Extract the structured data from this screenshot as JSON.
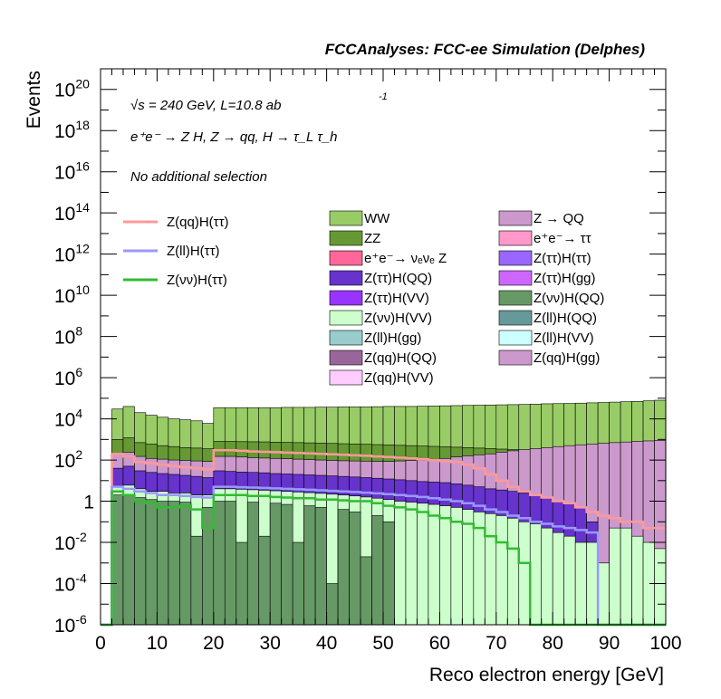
{
  "chart_data": {
    "type": "histogram",
    "log_y": true,
    "title": "FCCAnalyses: FCC-ee Simulation (Delphes)",
    "xlabel": "Reco electron energy [GeV]",
    "ylabel": "Events",
    "xlim": [
      0,
      100
    ],
    "ylim": [
      1e-06,
      1e+21
    ],
    "annotations": {
      "energy": "√s = 240 GeV, L=10.8 ab",
      "energy_sup": "-1",
      "process": "e⁺e⁻ → Z H, Z → qq, H → τ_L τ_h",
      "selection": "No additional selection"
    },
    "x_ticks": [
      "0",
      "10",
      "20",
      "30",
      "40",
      "50",
      "60",
      "70",
      "80",
      "90",
      "100"
    ],
    "y_ticks": [
      {
        "base": "10",
        "exp": "-6"
      },
      {
        "base": "10",
        "exp": "-4"
      },
      {
        "base": "10",
        "exp": "-2"
      },
      {
        "base": "1",
        "exp": ""
      },
      {
        "base": "10",
        "exp": "2"
      },
      {
        "base": "10",
        "exp": "4"
      },
      {
        "base": "10",
        "exp": "6"
      },
      {
        "base": "10",
        "exp": "8"
      },
      {
        "base": "10",
        "exp": "10"
      },
      {
        "base": "10",
        "exp": "12"
      },
      {
        "base": "10",
        "exp": "14"
      },
      {
        "base": "10",
        "exp": "16"
      },
      {
        "base": "10",
        "exp": "18"
      },
      {
        "base": "10",
        "exp": "20"
      }
    ],
    "signal_legend": [
      {
        "name": "Z(qq)H(ττ)",
        "color": "#ff9999"
      },
      {
        "name": "Z(ll)H(ττ)",
        "color": "#9999ff"
      },
      {
        "name": "Z(νν)H(ττ)",
        "color": "#33bb33"
      }
    ],
    "background_legend": [
      {
        "name": "WW",
        "color": "#99cc66"
      },
      {
        "name": "Z → QQ",
        "color": "#cc99cc"
      },
      {
        "name": "ZZ",
        "color": "#669933"
      },
      {
        "name": "e⁺e⁻→ ττ",
        "color": "#ff99cc"
      },
      {
        "name": "e⁺e⁻→ νₑνₑ Z",
        "color": "#ff6699"
      },
      {
        "name": "Z(ττ)H(ττ)",
        "color": "#9966ff"
      },
      {
        "name": "Z(ττ)H(QQ)",
        "color": "#6633cc"
      },
      {
        "name": "Z(ττ)H(gg)",
        "color": "#cc66ff"
      },
      {
        "name": "Z(ττ)H(VV)",
        "color": "#9933ff"
      },
      {
        "name": "Z(νν)H(QQ)",
        "color": "#669966"
      },
      {
        "name": "Z(νν)H(VV)",
        "color": "#ccffcc"
      },
      {
        "name": "Z(ll)H(QQ)",
        "color": "#669999"
      },
      {
        "name": "Z(ll)H(gg)",
        "color": "#99cccc"
      },
      {
        "name": "Z(ll)H(VV)",
        "color": "#ccffff"
      },
      {
        "name": "Z(qq)H(QQ)",
        "color": "#996699"
      },
      {
        "name": "Z(qq)H(gg)",
        "color": "#cc99cc"
      },
      {
        "name": "Z(qq)H(VV)",
        "color": "#ffccff"
      }
    ],
    "bin_width": 2,
    "stack_total": [
      1e-06,
      30000.0,
      40000.0,
      20000.0,
      15000.0,
      12000.0,
      10000.0,
      9000.0,
      8000.0,
      6000.0,
      35000.0,
      35000.0,
      35000.0,
      35000.0,
      35000.0,
      35000.0,
      36000.0,
      36000.0,
      36000.0,
      37000.0,
      37000.0,
      38000.0,
      38000.0,
      38000.0,
      39000.0,
      40000.0,
      40000.0,
      40000.0,
      41000.0,
      42000.0,
      43000.0,
      44000.0,
      45000.0,
      46000.0,
      47000.0,
      48000.0,
      49000.0,
      50000.0,
      52000.0,
      54000.0,
      55000.0,
      56000.0,
      58000.0,
      60000.0,
      62000.0,
      65000.0,
      68000.0,
      70000.0,
      75000.0,
      80000.0
    ],
    "layers": [
      {
        "name": "ZZ",
        "values": [
          1e-06,
          1000,
          1200,
          700,
          600,
          500,
          450,
          400,
          380,
          350,
          800,
          800,
          780,
          770,
          760,
          740,
          720,
          700,
          680,
          660,
          640,
          620,
          600,
          580,
          560,
          540,
          520,
          500,
          480,
          460,
          440,
          420,
          400,
          380,
          360,
          340,
          320,
          300,
          280,
          260,
          240,
          220,
          200,
          190,
          180,
          170,
          160,
          150,
          140,
          130
        ]
      },
      {
        "name": "Z → QQ",
        "values": [
          1e-06,
          200,
          240,
          150,
          120,
          110,
          100,
          95,
          90,
          85,
          150,
          150,
          140,
          130,
          125,
          120,
          115,
          110,
          105,
          100,
          95,
          92,
          90,
          88,
          86,
          85,
          90,
          95,
          100,
          110,
          120,
          140,
          160,
          180,
          200,
          240,
          280,
          320,
          360,
          400,
          450,
          500,
          550,
          600,
          650,
          700,
          750,
          800,
          850,
          900
        ]
      },
      {
        "name": "Z(ττ)H(QQ)",
        "values": [
          1e-06,
          40,
          50,
          30,
          25,
          22,
          20,
          18,
          16,
          14,
          30,
          28,
          26,
          25,
          24,
          22,
          21,
          20,
          19,
          18,
          17,
          16,
          15,
          14,
          13,
          12,
          11,
          10,
          9,
          8.5,
          8,
          7,
          6,
          5,
          4,
          3.5,
          3,
          2.5,
          2,
          1.5,
          1,
          0.8,
          0.5,
          0.1,
          0.001,
          1e-06,
          1e-06,
          1e-06,
          1e-06,
          1e-06
        ]
      },
      {
        "name": "Z(νν)H(VV)",
        "values": [
          1e-06,
          5,
          6,
          4,
          3,
          3,
          2.5,
          2.5,
          2,
          2,
          4,
          4,
          3.8,
          3.6,
          3.4,
          3.2,
          3,
          2.8,
          2.6,
          2.4,
          2.2,
          2,
          1.8,
          1.6,
          1.4,
          1.2,
          1,
          0.9,
          0.8,
          0.7,
          0.6,
          0.5,
          0.4,
          0.3,
          0.25,
          0.2,
          0.15,
          0.1,
          0.08,
          0.05,
          0.03,
          0.02,
          0.01,
          0.01,
          0.001,
          0.05,
          0.05,
          0.02,
          0.01,
          0.005
        ]
      },
      {
        "name": "Z(νν)H(QQ)",
        "values": [
          1e-06,
          2,
          2,
          1.5,
          1.2,
          1,
          1,
          0.9,
          0.02,
          0.5,
          1,
          1,
          0.01,
          0.9,
          0.02,
          0.8,
          0.7,
          0.01,
          0.6,
          0.5,
          0.0001,
          0.4,
          0.3,
          0.002,
          0.2,
          0.1,
          1e-06,
          1e-06,
          1e-06,
          1e-06,
          1e-06,
          1e-06,
          1e-06,
          1e-06,
          1e-06,
          1e-06,
          1e-06,
          1e-06,
          1e-06,
          1e-06,
          1e-06,
          1e-06,
          1e-06,
          1e-06,
          1e-06,
          1e-06,
          1e-06,
          1e-06,
          1e-06,
          1e-06
        ]
      }
    ],
    "signal_curves": [
      {
        "name": "Z(qq)H(ττ)",
        "values": [
          1e-06,
          200,
          150,
          80,
          70,
          60,
          50,
          45,
          40,
          35,
          300,
          300,
          280,
          260,
          250,
          240,
          230,
          220,
          210,
          200,
          190,
          180,
          170,
          160,
          150,
          140,
          130,
          120,
          110,
          100,
          90,
          80,
          60,
          40,
          20,
          10,
          5,
          3,
          2,
          1.5,
          1,
          0.8,
          0.5,
          0.3,
          0.2,
          0.15,
          0.1,
          0.1,
          0.05,
          0.05
        ]
      },
      {
        "name": "Z(ll)H(ττ)",
        "values": [
          1e-06,
          5,
          4,
          3,
          2.5,
          2,
          2,
          1.8,
          1.6,
          1.5,
          5,
          5,
          4.8,
          4.6,
          4.4,
          4.2,
          4,
          3.8,
          3.6,
          3.4,
          3.2,
          3,
          2.8,
          2.6,
          2.4,
          2.2,
          2,
          1.8,
          1.6,
          1.4,
          1.2,
          1,
          0.8,
          0.6,
          0.4,
          0.3,
          0.2,
          0.15,
          0.1,
          0.08,
          0.06,
          0.05,
          0.04,
          0.03,
          1e-06,
          1e-06,
          1e-06,
          1e-06,
          1e-06,
          1e-06
        ]
      },
      {
        "name": "Z(νν)H(ττ)",
        "values": [
          1e-06,
          3,
          2,
          1,
          0.8,
          0.5,
          0.5,
          0.6,
          0.4,
          0.05,
          2,
          2,
          2,
          1.8,
          1.8,
          1.6,
          1.5,
          1.4,
          1.4,
          1.2,
          1.2,
          1.1,
          1,
          1,
          0.8,
          0.6,
          0.5,
          0.4,
          0.3,
          0.2,
          0.15,
          0.1,
          0.08,
          0.05,
          0.02,
          0.01,
          0.005,
          0.001,
          1e-06,
          1e-06,
          1e-06,
          1e-06,
          1e-06,
          1e-06,
          1e-06,
          1e-06,
          1e-06,
          1e-06,
          1e-06,
          1e-06
        ]
      }
    ]
  }
}
